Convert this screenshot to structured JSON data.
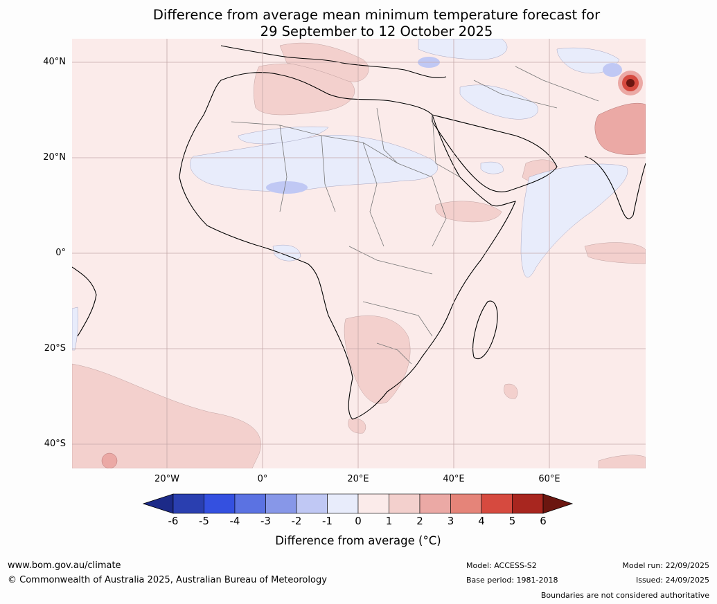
{
  "title": {
    "line1": "Difference from average mean minimum temperature forecast for",
    "line2": "29 September to 12 October 2025"
  },
  "map": {
    "region": "Africa",
    "background_color": "#fbebea",
    "lat_labels": [
      "40°N",
      "20°N",
      "0°",
      "20°S",
      "40°S"
    ],
    "lon_labels": [
      "20°W",
      "0°",
      "20°E",
      "40°E",
      "60°E"
    ]
  },
  "legend": {
    "ticks": [
      "-6",
      "-5",
      "-4",
      "-3",
      "-2",
      "-1",
      "0",
      "1",
      "2",
      "3",
      "4",
      "5",
      "6"
    ],
    "colors": [
      "#1c2a88",
      "#2a3fb0",
      "#3450e0",
      "#5b72e2",
      "#8797e8",
      "#c0c8f4",
      "#e8ecfb",
      "#fbebea",
      "#f3d0cd",
      "#eba9a5",
      "#e58479",
      "#d64a3f",
      "#a8261f",
      "#6b1610"
    ],
    "label": "Difference from average (°C)"
  },
  "footer": {
    "website": "www.bom.gov.au/climate",
    "copyright": "© Commonwealth of Australia 2025, Australian Bureau of Meteorology",
    "model": "Model: ACCESS-S2",
    "base_period": "Base period: 1981-2018",
    "model_run": "Model run: 22/09/2025",
    "issued": "Issued: 24/09/2025",
    "disclaimer": "Boundaries are not considered authoritative"
  }
}
